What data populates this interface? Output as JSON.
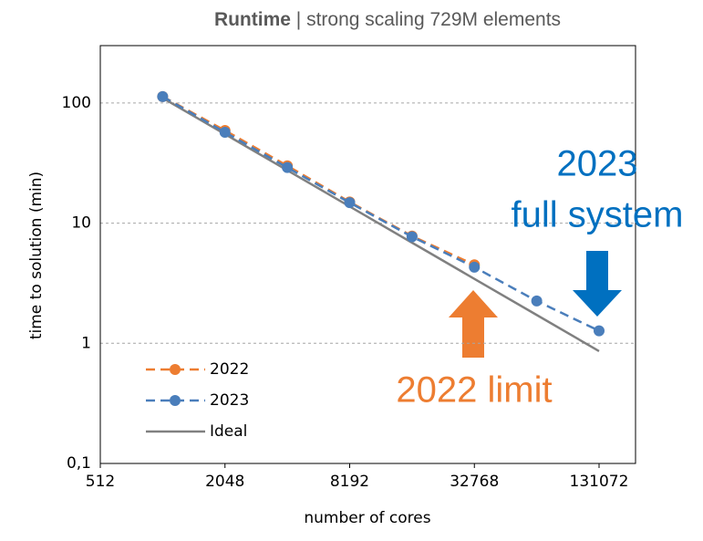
{
  "chart_data": {
    "type": "line",
    "title": "Runtime",
    "subtitle": "| strong scaling 729M elements",
    "x_label": "number of cores",
    "y_label": "time to solution (min)",
    "x_scale": "log2",
    "y_scale": "log10",
    "xlim": [
      512,
      196608
    ],
    "xticks": [
      512,
      2048,
      8192,
      32768,
      131072
    ],
    "ylim": [
      0.1,
      300
    ],
    "yticks": [
      {
        "value": 0.1,
        "label": "0,1"
      },
      1,
      10,
      100
    ],
    "grid": true,
    "legend": "lower left",
    "series": [
      {
        "name": "2022",
        "color": "#ed7d31",
        "dashed": true,
        "markers": true,
        "x": [
          1024,
          2048,
          4096,
          8192,
          16384,
          32768
        ],
        "values": [
          113,
          59,
          30,
          15,
          7.8,
          4.5
        ]
      },
      {
        "name": "2023",
        "color": "#4a7ebb",
        "dashed": true,
        "markers": true,
        "x": [
          1024,
          2048,
          4096,
          8192,
          16384,
          32768,
          65536,
          131072
        ],
        "values": [
          113,
          57,
          29,
          14.8,
          7.7,
          4.3,
          2.25,
          1.27
        ]
      },
      {
        "name": "Ideal",
        "color": "#808080",
        "dashed": false,
        "markers": false,
        "x": [
          1024,
          2048,
          4096,
          8192,
          16384,
          32768,
          65536,
          131072
        ],
        "values": [
          110,
          55,
          27.5,
          13.75,
          6.875,
          3.4375,
          1.72,
          0.86
        ]
      }
    ],
    "annotations": [
      {
        "text": "2023",
        "color": "#0070c0"
      },
      {
        "text": "full system",
        "color": "#0070c0"
      },
      {
        "text": "2022 limit",
        "color": "#ed7d31"
      }
    ]
  }
}
